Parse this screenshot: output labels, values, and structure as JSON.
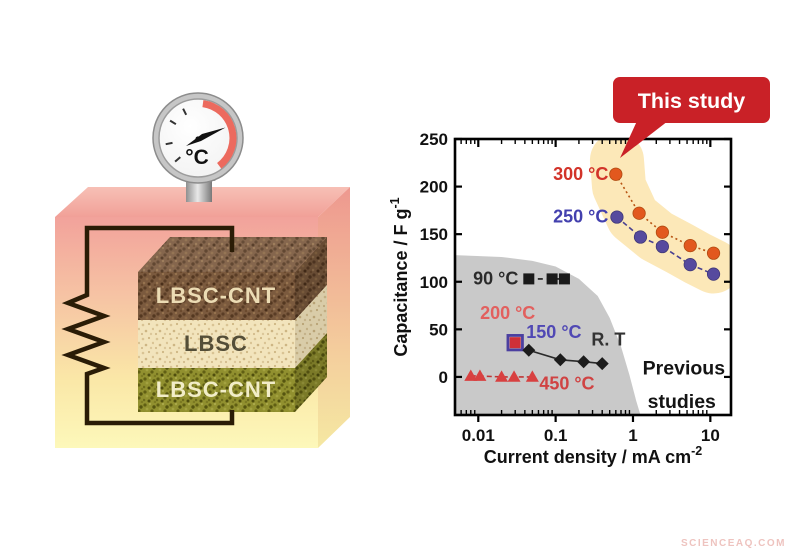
{
  "watermark": "SCIENCEAQ.COM",
  "illustration": {
    "gauge_unit": "°C",
    "layers": [
      {
        "label": "LBSC-CNT"
      },
      {
        "label": "LBSC"
      },
      {
        "label": "LBSC-CNT"
      }
    ]
  },
  "chart_data": {
    "type": "scatter",
    "title": "",
    "xlabel": {
      "text": "Current density / mA cm",
      "sup": "-2"
    },
    "ylabel": {
      "text": "Capacitance / F g",
      "sup": "-1"
    },
    "x_scale": "log",
    "xlim": [
      0.005,
      18.5
    ],
    "ylim": [
      -40,
      250
    ],
    "xticks": [
      {
        "v": 0.01,
        "label": "0.01"
      },
      {
        "v": 0.1,
        "label": "0.1"
      },
      {
        "v": 1,
        "label": "1"
      },
      {
        "v": 10,
        "label": "10"
      }
    ],
    "yticks": [
      0,
      50,
      100,
      150,
      200,
      250
    ],
    "grid": false,
    "legend_position": "inline-labels",
    "series": [
      {
        "name": "300 °C",
        "marker": "circle",
        "size": 6.2,
        "color": "#e2581e",
        "edge": "#b04a10",
        "line_color": "#b85514",
        "line_dash": "2,3",
        "x": [
          0.6,
          1.2,
          2.4,
          5.5,
          11
        ],
        "y": [
          213,
          172,
          152,
          138,
          130
        ],
        "label": {
          "x": 0.48,
          "y": 212,
          "anchor": "end",
          "color": "#d23329"
        }
      },
      {
        "name": "250 °C",
        "marker": "circle",
        "size": 6.2,
        "color": "#564a9e",
        "edge": "#403878",
        "line_color": "#494091",
        "line_dash": "5,3",
        "x": [
          0.62,
          1.25,
          2.4,
          5.5,
          11
        ],
        "y": [
          168,
          147,
          137,
          118,
          108
        ],
        "label": {
          "x": 0.48,
          "y": 167,
          "anchor": "end",
          "color": "#4340ae"
        }
      },
      {
        "name": "90 °C",
        "marker": "square",
        "size": 11,
        "color": "#1a1a1a",
        "edge": "#000000",
        "line_color": "#1a1a1a",
        "line_dash": "5,4",
        "x": [
          0.045,
          0.09,
          0.13
        ],
        "y": [
          103,
          103,
          103
        ],
        "label": {
          "x": 0.033,
          "y": 102,
          "anchor": "end",
          "color": "#2b2b2b"
        }
      },
      {
        "name": "200 °C",
        "marker": "square",
        "size": 11,
        "color": "#cf3038",
        "edge": "#a02028",
        "line_color": "none",
        "line_dash": "",
        "x": [
          0.03
        ],
        "y": [
          36
        ],
        "label": {
          "x": 0.024,
          "y": 66,
          "anchor": "middle",
          "color": "#e2605e"
        }
      },
      {
        "name": "150 °C",
        "marker": "square-open",
        "size": 14.5,
        "color": "#4b3fa0",
        "edge": "#4b3fa0",
        "line_color": "none",
        "line_dash": "",
        "x": [
          0.03
        ],
        "y": [
          36
        ],
        "label": {
          "x": 0.095,
          "y": 46,
          "anchor": "middle",
          "color": "#5048b4"
        }
      },
      {
        "name": "R. T",
        "marker": "diamond",
        "size": 6.5,
        "color": "#1c1c1c",
        "edge": "#000000",
        "line_color": "#2a2a2a",
        "line_dash": "",
        "x": [
          0.045,
          0.115,
          0.23,
          0.4
        ],
        "y": [
          28,
          18,
          16,
          14
        ],
        "label": {
          "x": 0.48,
          "y": 38,
          "anchor": "middle",
          "color": "#333333"
        }
      },
      {
        "name": "450 °C",
        "marker": "triangle",
        "size": 6.5,
        "color": "#d84040",
        "edge": "#b02c2c",
        "line_color": "#c03535",
        "line_dash": "5,3",
        "x": [
          0.008,
          0.0105,
          0.02,
          0.029,
          0.05
        ],
        "y": [
          1,
          1,
          0,
          0,
          0
        ],
        "label": {
          "x": 0.14,
          "y": -8,
          "anchor": "middle",
          "color": "#d04343"
        }
      }
    ],
    "regions": {
      "previous_polygon": [
        [
          0.005,
          128
        ],
        [
          0.02,
          126
        ],
        [
          0.05,
          122
        ],
        [
          0.1,
          116
        ],
        [
          0.2,
          103
        ],
        [
          0.35,
          85
        ],
        [
          0.5,
          62
        ],
        [
          0.7,
          32
        ],
        [
          0.9,
          2
        ],
        [
          1.1,
          -25
        ],
        [
          1.25,
          -40
        ],
        [
          0.005,
          -40
        ]
      ],
      "previous_fill": "#c9c9c9",
      "highlight_points": [
        [
          0.62,
          228
        ],
        [
          0.66,
          200
        ],
        [
          1.0,
          168
        ],
        [
          2.0,
          148
        ],
        [
          4.0,
          135
        ],
        [
          7.0,
          124
        ],
        [
          11,
          116
        ]
      ],
      "highlight_color": "#fce8b8",
      "highlight_width": 54
    },
    "annotations": {
      "callout_text": "This study",
      "callout_bg": "#c92127",
      "callout_fg": "#ffffff",
      "previous_lines": [
        "Previous",
        "studies"
      ],
      "previous_pos": [
        [
          15.5,
          8
        ],
        [
          11.8,
          -27
        ]
      ],
      "previous_color": "#141414"
    }
  }
}
